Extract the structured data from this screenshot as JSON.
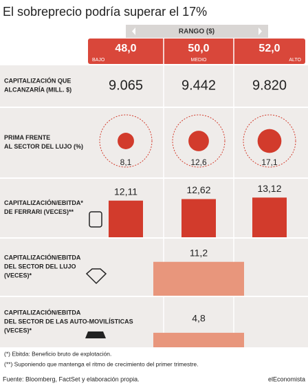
{
  "title": "El sobreprecio podría superar el 17%",
  "header": {
    "range_label": "RANGO ($)",
    "columns": [
      {
        "value": "48,0",
        "sublabel": "BAJO"
      },
      {
        "value": "50,0",
        "sublabel": "MEDIO"
      },
      {
        "value": "52,0",
        "sublabel": "ALTO"
      }
    ]
  },
  "rows": [
    {
      "label": "CAPITALIZACIÓN QUE ALCANZARÍA (MILL. $)",
      "kind": "text",
      "value_labels": [
        "9.065",
        "9.442",
        "9.820"
      ]
    },
    {
      "label": "PRIMA FRENTE AL SECTOR DEL LUJO (%)",
      "kind": "circle",
      "color": "#d23b2c",
      "values": [
        8.1,
        12.6,
        17.1
      ],
      "value_labels": [
        "8,1",
        "12,6",
        "17,1"
      ]
    },
    {
      "label": "CAPITALIZACIÓN/EBITDA* DE FERRARI (VECES)**",
      "kind": "bar",
      "color": "#d23b2c",
      "values": [
        12.11,
        12.62,
        13.12
      ],
      "value_labels": [
        "12,11",
        "12,62",
        "13,12"
      ]
    },
    {
      "label": "CAPITALIZACIÓN/EBITDA DEL SECTOR DEL LUJO (VECES)*",
      "kind": "wide-bar",
      "color": "#e8967c",
      "values": [
        11.2
      ],
      "value_labels": [
        "11,2"
      ]
    },
    {
      "label": "CAPITALIZACIÓN/EBITDA DEL SECTOR DE LAS AUTO-MOVILÍSTICAS (VECES)*",
      "kind": "wide-bar",
      "color": "#e8967c",
      "values": [
        4.8
      ],
      "value_labels": [
        "4,8"
      ]
    }
  ],
  "notes": [
    "(*) Ebitda: Beneficio bruto de explotación.",
    "(**) Suponiendo que mantenga el ritmo de crecimiento del primer trimestre."
  ],
  "source": "Fuente: Bloomberg, FactSet y elaboración propia.",
  "brand": "elEconomista"
}
